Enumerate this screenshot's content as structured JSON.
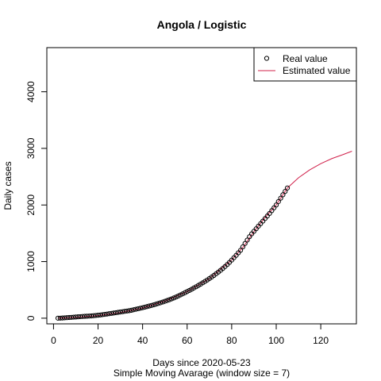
{
  "chart_data": {
    "type": "scatter",
    "title": "Angola / Logistic",
    "xlabel": "Days since 2020-05-23",
    "subtitle": "Simple Moving Avarage (window size = 7)",
    "ylabel": "Daily cases",
    "xlim": [
      -3,
      136
    ],
    "ylim": [
      -100,
      4780
    ],
    "x_ticks": [
      0,
      20,
      40,
      60,
      80,
      100,
      120
    ],
    "y_ticks": [
      0,
      1000,
      2000,
      3000,
      4000
    ],
    "grid": false,
    "legend_position": "top-right",
    "legend": {
      "real_label": "Real value",
      "estimated_label": "Estimated value"
    },
    "colors": {
      "real": "#000000",
      "estimated": "#d0204a"
    },
    "series": [
      {
        "name": "Real value",
        "type": "scatter",
        "points": [
          [
            2,
            0
          ],
          [
            3,
            1
          ],
          [
            4,
            3
          ],
          [
            5,
            6
          ],
          [
            6,
            9
          ],
          [
            7,
            12
          ],
          [
            8,
            15
          ],
          [
            9,
            18
          ],
          [
            10,
            21
          ],
          [
            11,
            24
          ],
          [
            12,
            27
          ],
          [
            13,
            30
          ],
          [
            14,
            33
          ],
          [
            15,
            35
          ],
          [
            16,
            37
          ],
          [
            17,
            40
          ],
          [
            18,
            44
          ],
          [
            19,
            48
          ],
          [
            20,
            52
          ],
          [
            21,
            57
          ],
          [
            22,
            62
          ],
          [
            23,
            67
          ],
          [
            24,
            73
          ],
          [
            25,
            79
          ],
          [
            26,
            85
          ],
          [
            27,
            91
          ],
          [
            28,
            97
          ],
          [
            29,
            103
          ],
          [
            30,
            109
          ],
          [
            31,
            115
          ],
          [
            32,
            121
          ],
          [
            33,
            127
          ],
          [
            34,
            133
          ],
          [
            35,
            140
          ],
          [
            36,
            149
          ],
          [
            37,
            158
          ],
          [
            38,
            167
          ],
          [
            39,
            176
          ],
          [
            40,
            185
          ],
          [
            41,
            195
          ],
          [
            42,
            205
          ],
          [
            43,
            215
          ],
          [
            44,
            225
          ],
          [
            45,
            236
          ],
          [
            46,
            248
          ],
          [
            47,
            260
          ],
          [
            48,
            272
          ],
          [
            49,
            285
          ],
          [
            50,
            298
          ],
          [
            51,
            312
          ],
          [
            52,
            326
          ],
          [
            53,
            341
          ],
          [
            54,
            357
          ],
          [
            55,
            374
          ],
          [
            56,
            392
          ],
          [
            57,
            411
          ],
          [
            58,
            430
          ],
          [
            59,
            450
          ],
          [
            60,
            470
          ],
          [
            61,
            490
          ],
          [
            62,
            511
          ],
          [
            63,
            533
          ],
          [
            64,
            555
          ],
          [
            65,
            578
          ],
          [
            66,
            601
          ],
          [
            67,
            625
          ],
          [
            68,
            649
          ],
          [
            69,
            674
          ],
          [
            70,
            700
          ],
          [
            71,
            727
          ],
          [
            72,
            755
          ],
          [
            73,
            784
          ],
          [
            74,
            814
          ],
          [
            75,
            845
          ],
          [
            76,
            878
          ],
          [
            77,
            912
          ],
          [
            78,
            948
          ],
          [
            79,
            986
          ],
          [
            80,
            1026
          ],
          [
            81,
            1068
          ],
          [
            82,
            1110
          ],
          [
            83,
            1155
          ],
          [
            84,
            1200
          ],
          [
            85,
            1260
          ],
          [
            86,
            1320
          ],
          [
            87,
            1380
          ],
          [
            88,
            1440
          ],
          [
            89,
            1490
          ],
          [
            90,
            1535
          ],
          [
            91,
            1580
          ],
          [
            92,
            1625
          ],
          [
            93,
            1670
          ],
          [
            94,
            1715
          ],
          [
            95,
            1760
          ],
          [
            96,
            1805
          ],
          [
            97,
            1850
          ],
          [
            98,
            1900
          ],
          [
            99,
            1950
          ],
          [
            100,
            2000
          ],
          [
            101,
            2060
          ],
          [
            102,
            2120
          ],
          [
            103,
            2180
          ],
          [
            104,
            2240
          ],
          [
            105,
            2300
          ]
        ]
      },
      {
        "name": "Estimated value",
        "type": "line",
        "points": [
          [
            2,
            0
          ],
          [
            10,
            15
          ],
          [
            20,
            45
          ],
          [
            30,
            100
          ],
          [
            40,
            180
          ],
          [
            50,
            300
          ],
          [
            60,
            470
          ],
          [
            70,
            700
          ],
          [
            80,
            1030
          ],
          [
            85,
            1250
          ],
          [
            90,
            1530
          ],
          [
            95,
            1780
          ],
          [
            100,
            2000
          ],
          [
            105,
            2300
          ],
          [
            110,
            2480
          ],
          [
            115,
            2620
          ],
          [
            120,
            2730
          ],
          [
            125,
            2820
          ],
          [
            130,
            2890
          ],
          [
            134,
            2950
          ]
        ]
      }
    ]
  }
}
